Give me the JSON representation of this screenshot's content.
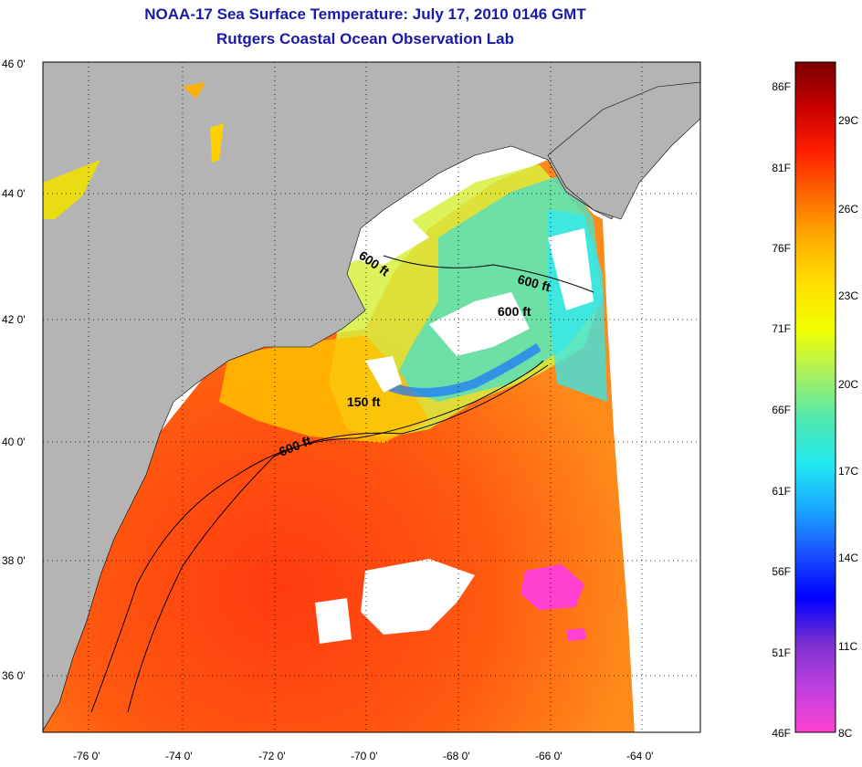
{
  "title": "NOAA-17 Sea Surface Temperature:  July 17, 2010 0146 GMT",
  "subtitle": "Rutgers Coastal Ocean Observation Lab",
  "lat_labels": [
    "46 0'",
    "44 0'",
    "42 0'",
    "40 0'",
    "38 0'",
    "36 0'"
  ],
  "lon_labels": [
    "-76 0'",
    "-74 0'",
    "-72 0'",
    "-70 0'",
    "-68 0'",
    "-66 0'",
    "-64 0'"
  ],
  "depth_contours": [
    "600 ft",
    "600 ft",
    "600 ft",
    "150 ft",
    "600 ft"
  ],
  "colorbar": {
    "fahrenheit": [
      "86F",
      "81F",
      "76F",
      "71F",
      "66F",
      "61F",
      "56F",
      "51F",
      "46F"
    ],
    "celsius": [
      "29C",
      "26C",
      "23C",
      "20C",
      "17C",
      "14C",
      "11C",
      "8C"
    ],
    "gradient_colors": [
      "#7a0000",
      "#c80000",
      "#ff1e00",
      "#ff6a00",
      "#ffb000",
      "#ffe000",
      "#f0ff00",
      "#a8f060",
      "#50e8b0",
      "#20e8f0",
      "#1aa8ff",
      "#1a50ff",
      "#0000ff",
      "#7a30d0",
      "#c040e0",
      "#ff40d0"
    ]
  },
  "colors": {
    "land": "#b4b4b4",
    "no_data": "#ffffff",
    "title": "#1a1aa8"
  }
}
